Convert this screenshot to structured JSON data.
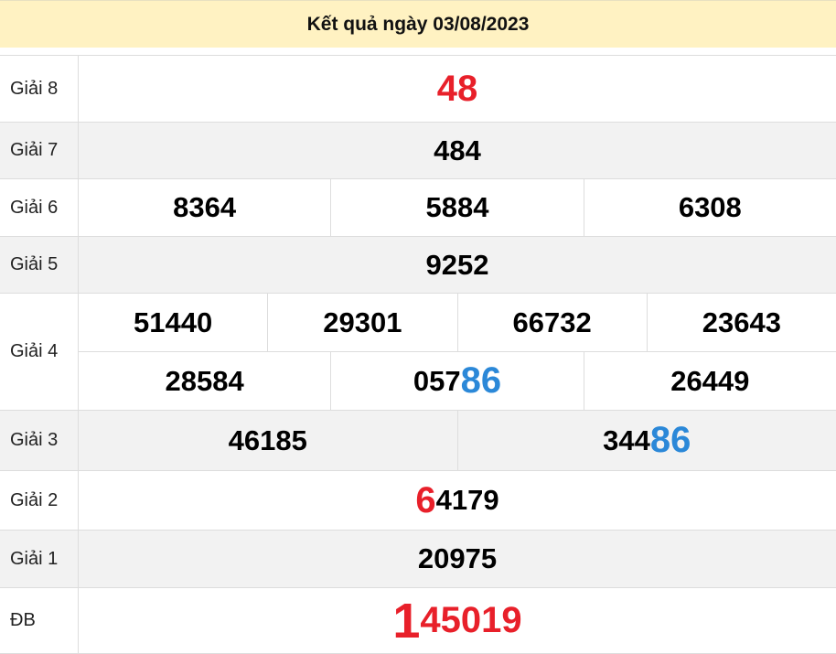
{
  "title": "Kết quả ngày 03/08/2023",
  "colors": {
    "header_bg": "#fff2c2",
    "red": "#e8202a",
    "blue": "#2b88d8",
    "alt_row": "#f2f2f2"
  },
  "prizes": [
    {
      "label": "Giải 8",
      "alt": false,
      "height": 73,
      "rows": [
        [
          [
            {
              "t": "48",
              "c": "red-num"
            }
          ]
        ]
      ]
    },
    {
      "label": "Giải 7",
      "alt": true,
      "height": 62,
      "rows": [
        [
          [
            {
              "t": "484"
            }
          ]
        ]
      ]
    },
    {
      "label": "Giải 6",
      "alt": false,
      "height": 63,
      "rows": [
        [
          [
            {
              "t": "8364"
            }
          ],
          [
            {
              "t": "5884"
            }
          ],
          [
            {
              "t": "6308"
            }
          ]
        ]
      ]
    },
    {
      "label": "Giải 5",
      "alt": true,
      "height": 62,
      "rows": [
        [
          [
            {
              "t": "9252"
            }
          ]
        ]
      ]
    },
    {
      "label": "Giải 4",
      "alt": false,
      "height": 128,
      "rows": [
        [
          [
            {
              "t": "51440"
            }
          ],
          [
            {
              "t": "29301"
            }
          ],
          [
            {
              "t": "66732"
            }
          ],
          [
            {
              "t": "23643"
            }
          ]
        ],
        [
          [
            {
              "t": "28584"
            }
          ],
          [
            {
              "t": "057"
            },
            {
              "t": "86",
              "c": "blue"
            }
          ],
          [
            {
              "t": "26449"
            }
          ]
        ]
      ]
    },
    {
      "label": "Giải 3",
      "alt": true,
      "height": 66,
      "rows": [
        [
          [
            {
              "t": "46185"
            }
          ],
          [
            {
              "t": "344"
            },
            {
              "t": "86",
              "c": "blue"
            }
          ]
        ]
      ]
    },
    {
      "label": "Giải 2",
      "alt": false,
      "height": 65,
      "rows": [
        [
          [
            {
              "t": "6",
              "c": "big-red"
            },
            {
              "t": "4179"
            }
          ]
        ]
      ]
    },
    {
      "label": "Giải 1",
      "alt": true,
      "height": 63,
      "rows": [
        [
          [
            {
              "t": "20975"
            }
          ]
        ]
      ]
    },
    {
      "label": "ĐB",
      "alt": false,
      "height": 72,
      "rows": [
        [
          [
            {
              "t": "1",
              "c": "huge-red"
            },
            {
              "t": "45019",
              "c": "red-num"
            }
          ]
        ]
      ]
    }
  ]
}
